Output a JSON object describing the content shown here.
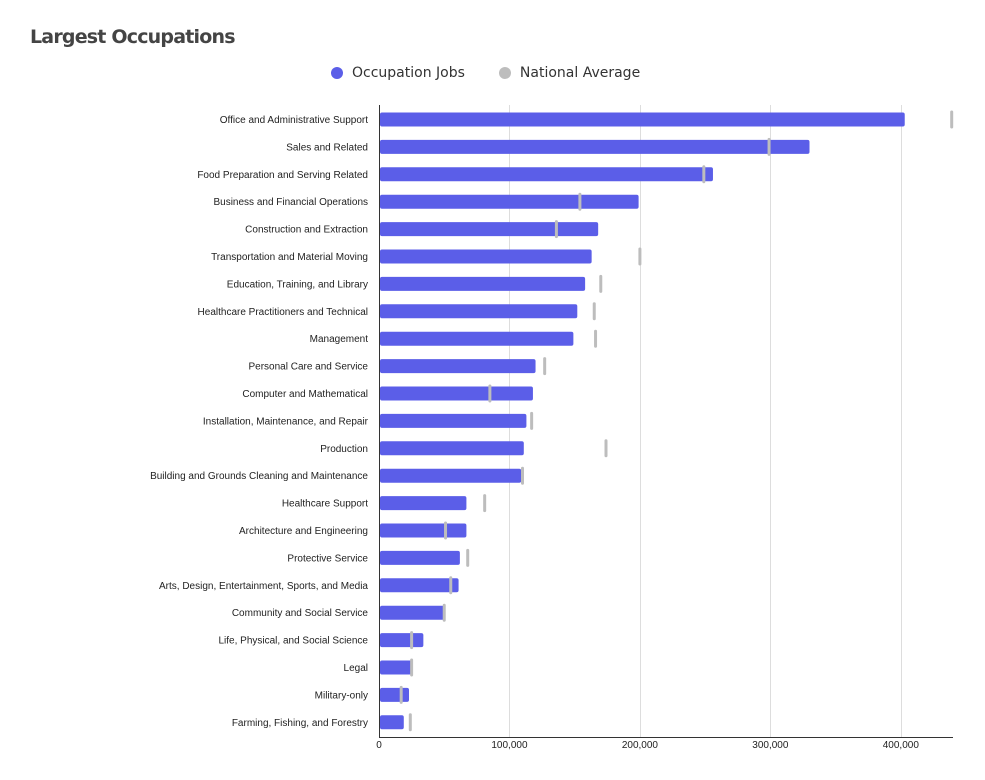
{
  "title": "Largest Occupations",
  "legend": {
    "items": [
      {
        "label": "Occupation Jobs",
        "color": "#5b5ee8"
      },
      {
        "label": "National Average",
        "color": "#bdbdbd"
      }
    ]
  },
  "chart_data": {
    "type": "bar",
    "orientation": "horizontal",
    "title": "Largest Occupations",
    "xlim": [
      0,
      440000
    ],
    "x_ticks": [
      0,
      100000,
      200000,
      300000,
      400000
    ],
    "x_tick_labels": [
      "0",
      "100,000",
      "200,000",
      "300,000",
      "400,000"
    ],
    "grid": true,
    "legend_position": "top-center",
    "categories": [
      "Office and Administrative Support",
      "Sales and Related",
      "Food Preparation and Serving Related",
      "Business and Financial Operations",
      "Construction and Extraction",
      "Transportation and Material Moving",
      "Education, Training, and Library",
      "Healthcare Practitioners and Technical",
      "Management",
      "Personal Care and Service",
      "Computer and Mathematical",
      "Installation, Maintenance, and Repair",
      "Production",
      "Building and Grounds Cleaning and Maintenance",
      "Healthcare Support",
      "Architecture and Engineering",
      "Protective Service",
      "Arts, Design, Entertainment, Sports, and Media",
      "Community and Social Service",
      "Life, Physical, and Social Science",
      "Legal",
      "Military-only",
      "Farming, Fishing, and Forestry"
    ],
    "series": [
      {
        "name": "Occupation Jobs",
        "color": "#5b5ee8",
        "values": [
          403000,
          330000,
          256000,
          199000,
          168000,
          163000,
          158000,
          152000,
          149000,
          120000,
          118000,
          113000,
          111000,
          109000,
          67000,
          67000,
          62000,
          61000,
          50000,
          34000,
          25000,
          23000,
          19000
        ]
      },
      {
        "name": "National Average",
        "color": "#bdbdbd",
        "values": [
          439000,
          299000,
          249000,
          154000,
          136000,
          200000,
          170000,
          165000,
          166000,
          127000,
          85000,
          117000,
          174000,
          110000,
          81000,
          51000,
          68000,
          55000,
          50000,
          25000,
          25000,
          17000,
          24000
        ]
      }
    ]
  }
}
